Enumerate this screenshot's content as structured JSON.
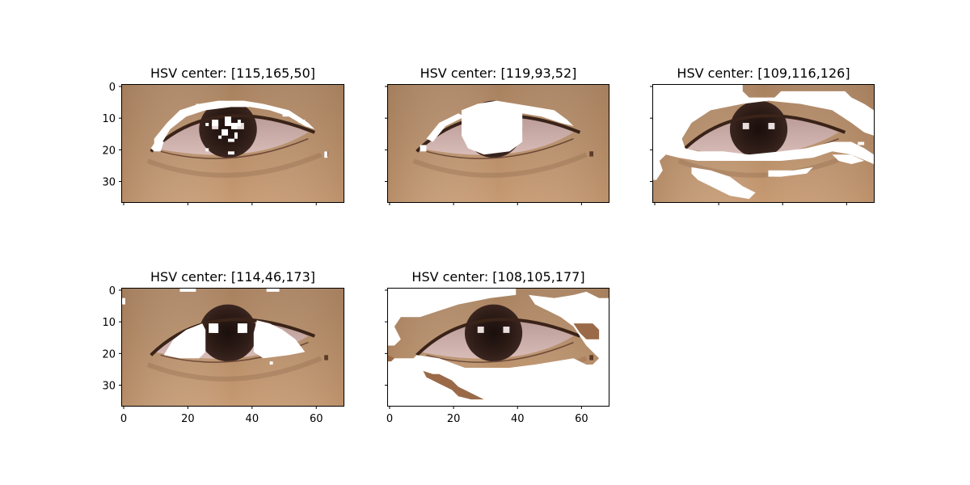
{
  "figure": {
    "background": "#ffffff",
    "panel_grid": "2x3"
  },
  "chart_data": [
    {
      "type": "image",
      "title": "HSV center: [115,165,50]",
      "image_size": [
        69,
        37
      ],
      "xlim": [
        0,
        69
      ],
      "ylim": [
        37,
        0
      ],
      "xticks": [
        0,
        20,
        40,
        60
      ],
      "yticks": [
        0,
        10,
        20,
        30
      ],
      "show_xtick_labels": false,
      "show_ytick_labels": true,
      "masked_region": "pupil and iris highlights",
      "mask_color": "#ffffff"
    },
    {
      "type": "image",
      "title": "HSV center: [119,93,52]",
      "image_size": [
        69,
        37
      ],
      "xlim": [
        0,
        69
      ],
      "ylim": [
        37,
        0
      ],
      "xticks": [
        0,
        20,
        40,
        60
      ],
      "yticks": [
        0,
        10,
        20,
        30
      ],
      "show_xtick_labels": false,
      "show_ytick_labels": false,
      "masked_region": "iris and upper lid line",
      "mask_color": "#ffffff"
    },
    {
      "type": "image",
      "title": "HSV center: [109,116,126]",
      "image_size": [
        69,
        37
      ],
      "xlim": [
        0,
        69
      ],
      "ylim": [
        37,
        0
      ],
      "xticks": [
        0,
        20,
        40,
        60
      ],
      "yticks": [
        0,
        10,
        20,
        30
      ],
      "show_xtick_labels": false,
      "show_ytick_labels": false,
      "masked_region": "skin around the eye",
      "mask_color": "#ffffff"
    },
    {
      "type": "image",
      "title": "HSV center: [114,46,173]",
      "image_size": [
        69,
        37
      ],
      "xlim": [
        0,
        69
      ],
      "ylim": [
        37,
        0
      ],
      "xticks": [
        0,
        20,
        40,
        60
      ],
      "yticks": [
        0,
        10,
        20,
        30
      ],
      "show_xtick_labels": true,
      "show_ytick_labels": true,
      "masked_region": "sclera",
      "mask_color": "#ffffff"
    },
    {
      "type": "image",
      "title": "HSV center: [108,105,177]",
      "image_size": [
        69,
        37
      ],
      "xlim": [
        0,
        69
      ],
      "ylim": [
        37,
        0
      ],
      "xticks": [
        0,
        20,
        40,
        60
      ],
      "yticks": [
        0,
        10,
        20,
        30
      ],
      "show_xtick_labels": true,
      "show_ytick_labels": false,
      "masked_region": "most of the skin",
      "mask_color": "#ffffff"
    }
  ]
}
